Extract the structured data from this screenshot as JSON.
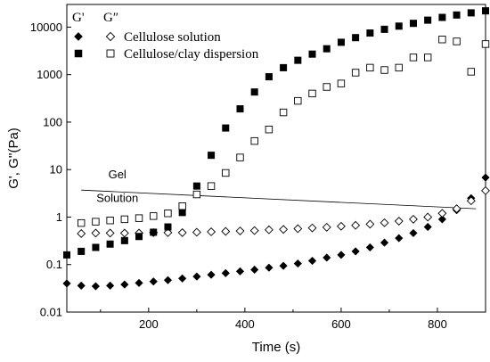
{
  "chart_data": {
    "type": "scatter",
    "title": "",
    "xlabel": "Time (s)",
    "ylabel": "G', G''(Pa)",
    "xlim": [
      30,
      900
    ],
    "ylim": [
      0.01,
      30000
    ],
    "yscale": "log",
    "x_ticks": [
      200,
      400,
      600,
      800
    ],
    "y_ticks": [
      {
        "value": 0.01,
        "label": "0.01"
      },
      {
        "value": 0.1,
        "label": "0.1"
      },
      {
        "value": 1,
        "label": "1"
      },
      {
        "value": 10,
        "label": "10"
      },
      {
        "value": 100,
        "label": "100"
      },
      {
        "value": 1000,
        "label": "1000"
      },
      {
        "value": 10000,
        "label": "10000"
      }
    ],
    "grid": false,
    "legend_position": "top-left",
    "legend": {
      "col_storage": "G'",
      "col_loss": "G″",
      "rows": [
        {
          "label": "Cellulose solution",
          "storage_marker": "filled-diamond",
          "loss_marker": "open-diamond"
        },
        {
          "label": "Cellulose/clay dispersion",
          "storage_marker": "filled-square",
          "loss_marker": "open-square"
        }
      ]
    },
    "annotations": [
      {
        "text": "Gel",
        "x": 135,
        "y": 6.5
      },
      {
        "text": "Solution",
        "x": 135,
        "y": 2.1
      }
    ],
    "divider_line": {
      "x": [
        60,
        880
      ],
      "y": [
        3.7,
        1.5
      ]
    },
    "series": [
      {
        "name": "Cellulose solution G'",
        "marker": "filled-diamond",
        "x": [
          30,
          60,
          90,
          120,
          150,
          180,
          210,
          240,
          270,
          300,
          330,
          360,
          390,
          420,
          450,
          480,
          510,
          540,
          570,
          600,
          630,
          660,
          690,
          720,
          750,
          780,
          810,
          840,
          870,
          900
        ],
        "y": [
          0.04,
          0.036,
          0.035,
          0.036,
          0.038,
          0.041,
          0.044,
          0.047,
          0.051,
          0.056,
          0.061,
          0.066,
          0.072,
          0.078,
          0.086,
          0.094,
          0.105,
          0.12,
          0.14,
          0.16,
          0.19,
          0.23,
          0.29,
          0.36,
          0.46,
          0.62,
          0.9,
          1.4,
          2.5,
          6.8
        ]
      },
      {
        "name": "Cellulose solution G″",
        "marker": "open-diamond",
        "x": [
          60,
          90,
          120,
          150,
          180,
          210,
          240,
          270,
          300,
          330,
          360,
          390,
          420,
          450,
          480,
          510,
          540,
          570,
          600,
          630,
          660,
          690,
          720,
          750,
          780,
          810,
          840,
          870,
          900
        ],
        "y": [
          0.45,
          0.46,
          0.46,
          0.46,
          0.46,
          0.47,
          0.47,
          0.47,
          0.48,
          0.49,
          0.5,
          0.51,
          0.52,
          0.54,
          0.55,
          0.57,
          0.59,
          0.61,
          0.64,
          0.67,
          0.71,
          0.76,
          0.82,
          0.9,
          1.0,
          1.2,
          1.5,
          2.2,
          3.6
        ]
      },
      {
        "name": "Cellulose/clay dispersion G'",
        "marker": "filled-square",
        "x": [
          30,
          60,
          90,
          120,
          150,
          180,
          210,
          240,
          270,
          300,
          330,
          360,
          390,
          420,
          450,
          480,
          510,
          540,
          570,
          600,
          630,
          660,
          690,
          720,
          750,
          780,
          810,
          840,
          870,
          900
        ],
        "y": [
          0.16,
          0.19,
          0.23,
          0.27,
          0.32,
          0.39,
          0.48,
          0.62,
          1.25,
          4.5,
          20,
          75,
          190,
          430,
          900,
          1400,
          2000,
          2700,
          3500,
          4800,
          6000,
          7500,
          9000,
          10500,
          12000,
          14000,
          16000,
          18000,
          20000,
          22000
        ]
      },
      {
        "name": "Cellulose/clay dispersion G″",
        "marker": "open-square",
        "x": [
          60,
          90,
          120,
          150,
          180,
          210,
          240,
          270,
          300,
          330,
          360,
          390,
          420,
          450,
          480,
          510,
          540,
          570,
          600,
          630,
          660,
          690,
          720,
          750,
          780,
          810,
          840,
          870,
          900
        ],
        "y": [
          0.75,
          0.8,
          0.85,
          0.9,
          0.95,
          1.05,
          1.2,
          1.7,
          3.0,
          4.5,
          8.5,
          18,
          40,
          70,
          160,
          280,
          400,
          550,
          650,
          1100,
          1400,
          1250,
          1400,
          2300,
          2300,
          5500,
          5000,
          1150,
          4400
        ]
      }
    ]
  }
}
